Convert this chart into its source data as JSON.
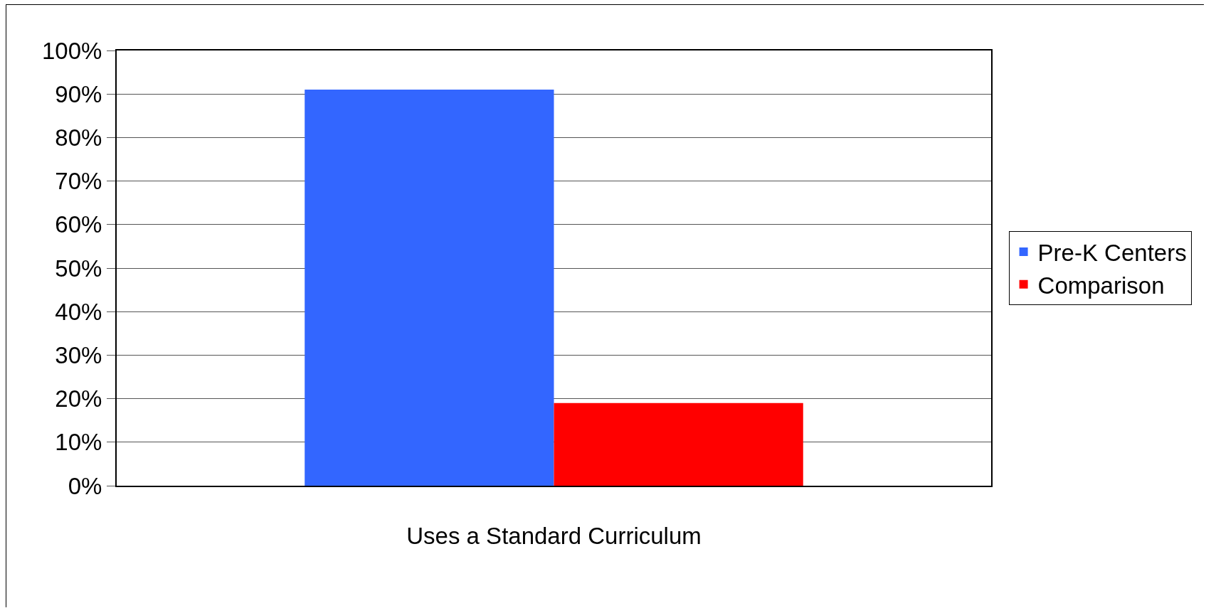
{
  "chart_data": {
    "type": "bar",
    "categories": [
      "Uses a Standard Curriculum"
    ],
    "series": [
      {
        "name": "Pre-K Centers",
        "color": "#3366ff",
        "values": [
          91
        ]
      },
      {
        "name": "Comparison",
        "color": "#ff0000",
        "values": [
          19
        ]
      }
    ],
    "ylim": [
      0,
      100
    ],
    "yticks": [
      {
        "value": 0,
        "label": "0%"
      },
      {
        "value": 10,
        "label": "10%"
      },
      {
        "value": 20,
        "label": "20%"
      },
      {
        "value": 30,
        "label": "30%"
      },
      {
        "value": 40,
        "label": "40%"
      },
      {
        "value": 50,
        "label": "50%"
      },
      {
        "value": 60,
        "label": "60%"
      },
      {
        "value": 70,
        "label": "70%"
      },
      {
        "value": 80,
        "label": "80%"
      },
      {
        "value": 90,
        "label": "90%"
      },
      {
        "value": 100,
        "label": "100%"
      }
    ],
    "grid": "y",
    "legend": "right"
  }
}
